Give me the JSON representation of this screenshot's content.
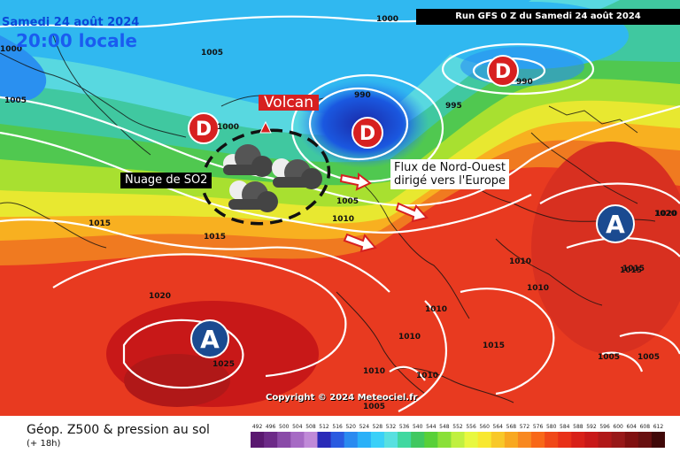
{
  "header": {
    "date": "Samedi 24 août 2024",
    "time": "20:00 locale",
    "run": "Run GFS 0 Z du Samedi 24 août 2024"
  },
  "annotations": {
    "volcan": "Volcan",
    "so2": "Nuage de SO2",
    "flux": "Flux de Nord-Ouest\ndirigé vers l'Europe"
  },
  "pressure_systems": [
    {
      "letter": "D",
      "kind": "low"
    },
    {
      "letter": "D",
      "kind": "low"
    },
    {
      "letter": "D",
      "kind": "low"
    },
    {
      "letter": "A",
      "kind": "high"
    },
    {
      "letter": "A",
      "kind": "high"
    }
  ],
  "isobar_labels": [
    "1000",
    "1005",
    "1005",
    "1000",
    "990",
    "995",
    "990",
    "1000",
    "1005",
    "1010",
    "1015",
    "1015",
    "1020",
    "1020",
    "1025",
    "1010",
    "1010",
    "1015",
    "1015",
    "1010",
    "1010",
    "1010",
    "1010",
    "1005",
    "1005",
    "1020",
    "1015",
    "1005"
  ],
  "copyright": "Copyright © 2024 Meteociel.fr",
  "legend": {
    "title": "Géop. Z500 & pression au sol",
    "subtitle": "(+ 18h)",
    "ticks": [
      "492",
      "496",
      "500",
      "504",
      "508",
      "512",
      "516",
      "520",
      "524",
      "528",
      "532",
      "536",
      "540",
      "544",
      "548",
      "552",
      "556",
      "560",
      "564",
      "568",
      "572",
      "576",
      "580",
      "584",
      "588",
      "592",
      "596",
      "600",
      "604",
      "608",
      "612"
    ],
    "colors": [
      "#5a1870",
      "#6d2a88",
      "#8a4aa8",
      "#a66ac4",
      "#c08ad8",
      "#2a2ab8",
      "#2a5ae0",
      "#2a8af0",
      "#2ab0f8",
      "#3ad0f8",
      "#58e0e0",
      "#40d8a0",
      "#40c860",
      "#58d038",
      "#8ae038",
      "#c0f040",
      "#e8f840",
      "#f8e830",
      "#f8c828",
      "#f8a820",
      "#f88820",
      "#f86818",
      "#f04818",
      "#e83018",
      "#d82018",
      "#c81818",
      "#b01818",
      "#981818",
      "#801010",
      "#681010",
      "#400808"
    ]
  }
}
